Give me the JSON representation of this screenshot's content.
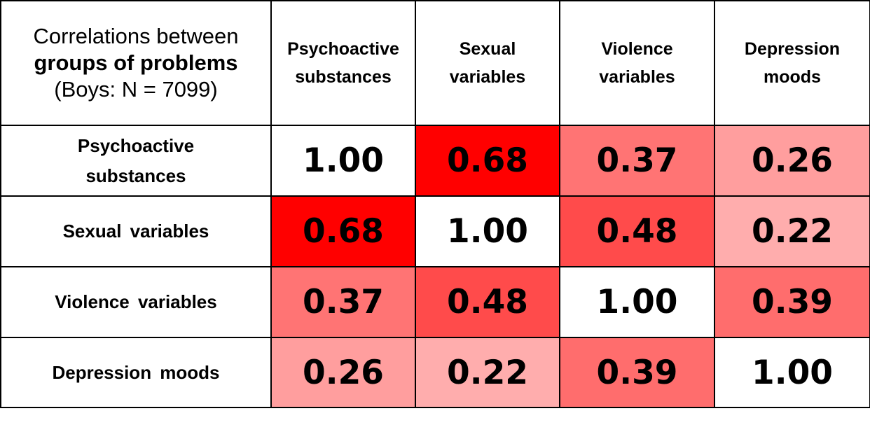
{
  "corner": {
    "line1": "Correlations between",
    "line2": "groups of problems",
    "line3": "(Boys: N = 7099)"
  },
  "columns": [
    {
      "line1": "Psychoactive",
      "line2": "substances"
    },
    {
      "line1": "Sexual",
      "line2": "variables"
    },
    {
      "line1": "Violence",
      "line2": "variables"
    },
    {
      "line1": "Depression",
      "line2": "moods"
    }
  ],
  "rows": [
    {
      "line1": "Psychoactive",
      "line2": "substances"
    },
    {
      "line1": "Sexual variables",
      "line2": ""
    },
    {
      "line1": "Violence variables",
      "line2": ""
    },
    {
      "line1": "Depression moods",
      "line2": ""
    }
  ],
  "colors": {
    "text": "#000000",
    "border": "#000000",
    "diagonal": "#ffffff",
    "scale_low": "#ffffff",
    "scale_high": "#ff0000"
  },
  "chart_data": {
    "type": "heatmap",
    "title": "Correlations between groups of problems (Boys: N = 7099)",
    "x_categories": [
      "Psychoactive substances",
      "Sexual variables",
      "Violence variables",
      "Depression moods"
    ],
    "y_categories": [
      "Psychoactive substances",
      "Sexual variables",
      "Violence variables",
      "Depression moods"
    ],
    "values": [
      [
        "1.00",
        "0.68",
        "0.37",
        "0.26"
      ],
      [
        "0.68",
        "1.00",
        "0.48",
        "0.22"
      ],
      [
        "0.37",
        "0.48",
        "1.00",
        "0.39"
      ],
      [
        "0.26",
        "0.22",
        "0.39",
        "1.00"
      ]
    ],
    "color_scale": {
      "min": 0,
      "max": 0.68,
      "diagonal": "white"
    }
  }
}
